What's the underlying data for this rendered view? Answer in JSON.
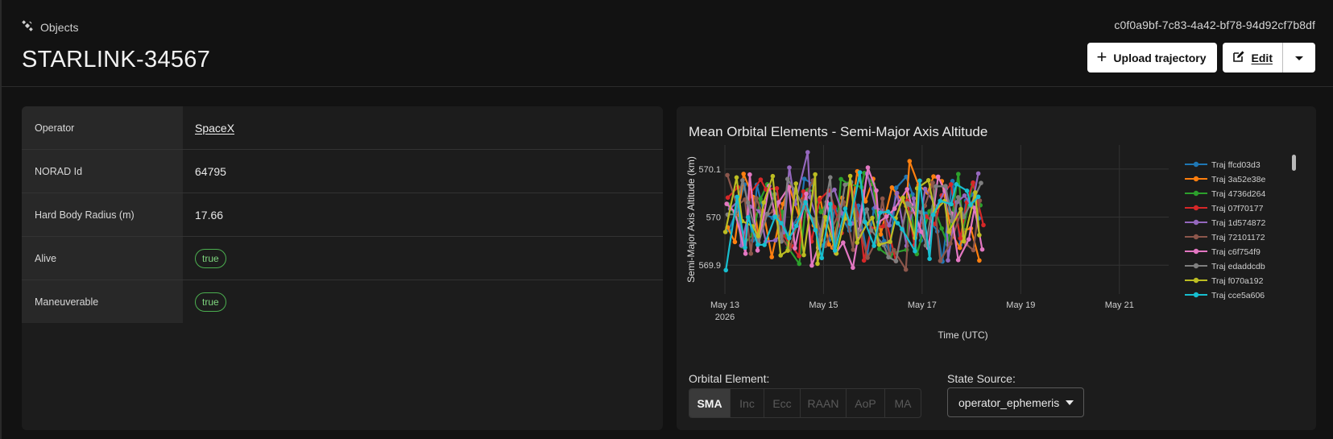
{
  "header": {
    "breadcrumb_label": "Objects",
    "uuid": "c0f0a9bf-7c83-4a42-bf78-94d92cf7b8df",
    "title": "STARLINK-34567",
    "upload_label": "Upload trajectory",
    "edit_label": "Edit"
  },
  "properties": [
    {
      "key": "Operator",
      "value": "SpaceX",
      "kind": "link"
    },
    {
      "key": "NORAD Id",
      "value": "64795",
      "kind": "text"
    },
    {
      "key": "Hard Body Radius (m)",
      "value": "17.66",
      "kind": "text"
    },
    {
      "key": "Alive",
      "value": "true",
      "kind": "chip"
    },
    {
      "key": "Maneuverable",
      "value": "true",
      "kind": "chip"
    }
  ],
  "chart_title": "Mean Orbital Elements - Semi-Major Axis Altitude",
  "controls": {
    "orbital_element_label": "Orbital Element:",
    "state_source_label": "State Source:",
    "elements": [
      "SMA",
      "Inc",
      "Ecc",
      "RAAN",
      "AoP",
      "MA"
    ],
    "selected_element": "SMA",
    "state_source_value": "operator_ephemeris"
  },
  "colors": {
    "chip_green": "#4caf50",
    "panel_bg": "#1c1c1c",
    "page_bg": "#121212"
  },
  "chart_data": {
    "type": "line",
    "ylabel": "Semi-Major Axis Altitude (km)",
    "xlabel": "Time (UTC)",
    "x_ticks": [
      "May 13",
      "May 15",
      "May 17",
      "May 19",
      "May 21"
    ],
    "x_tick_year": "2026",
    "y_ticks": [
      569.9,
      570,
      570.1
    ],
    "x_range": [
      "2026-05-13",
      "2026-05-22"
    ],
    "y_range": [
      569.84,
      570.15
    ],
    "data_extent": {
      "start": "2026-05-13T00:00",
      "end": "2026-05-18T07:00"
    },
    "legend_position": "right",
    "grid": true,
    "series": [
      {
        "name": "Traj ffcd03d3",
        "color": "#1f77b4"
      },
      {
        "name": "Traj 3a52e38e",
        "color": "#ff7f0e"
      },
      {
        "name": "Traj 4736d264",
        "color": "#2ca02c"
      },
      {
        "name": "Traj 07f70177",
        "color": "#d62728"
      },
      {
        "name": "Traj 1d574872",
        "color": "#9467bd"
      },
      {
        "name": "Traj 72101172",
        "color": "#8c564b"
      },
      {
        "name": "Traj c6f754f9",
        "color": "#e377c2"
      },
      {
        "name": "Traj edaddcdb",
        "color": "#7f7f7f"
      },
      {
        "name": "Traj f070a192",
        "color": "#bcbd22"
      },
      {
        "name": "Traj cce5a606",
        "color": "#17becf"
      }
    ]
  }
}
